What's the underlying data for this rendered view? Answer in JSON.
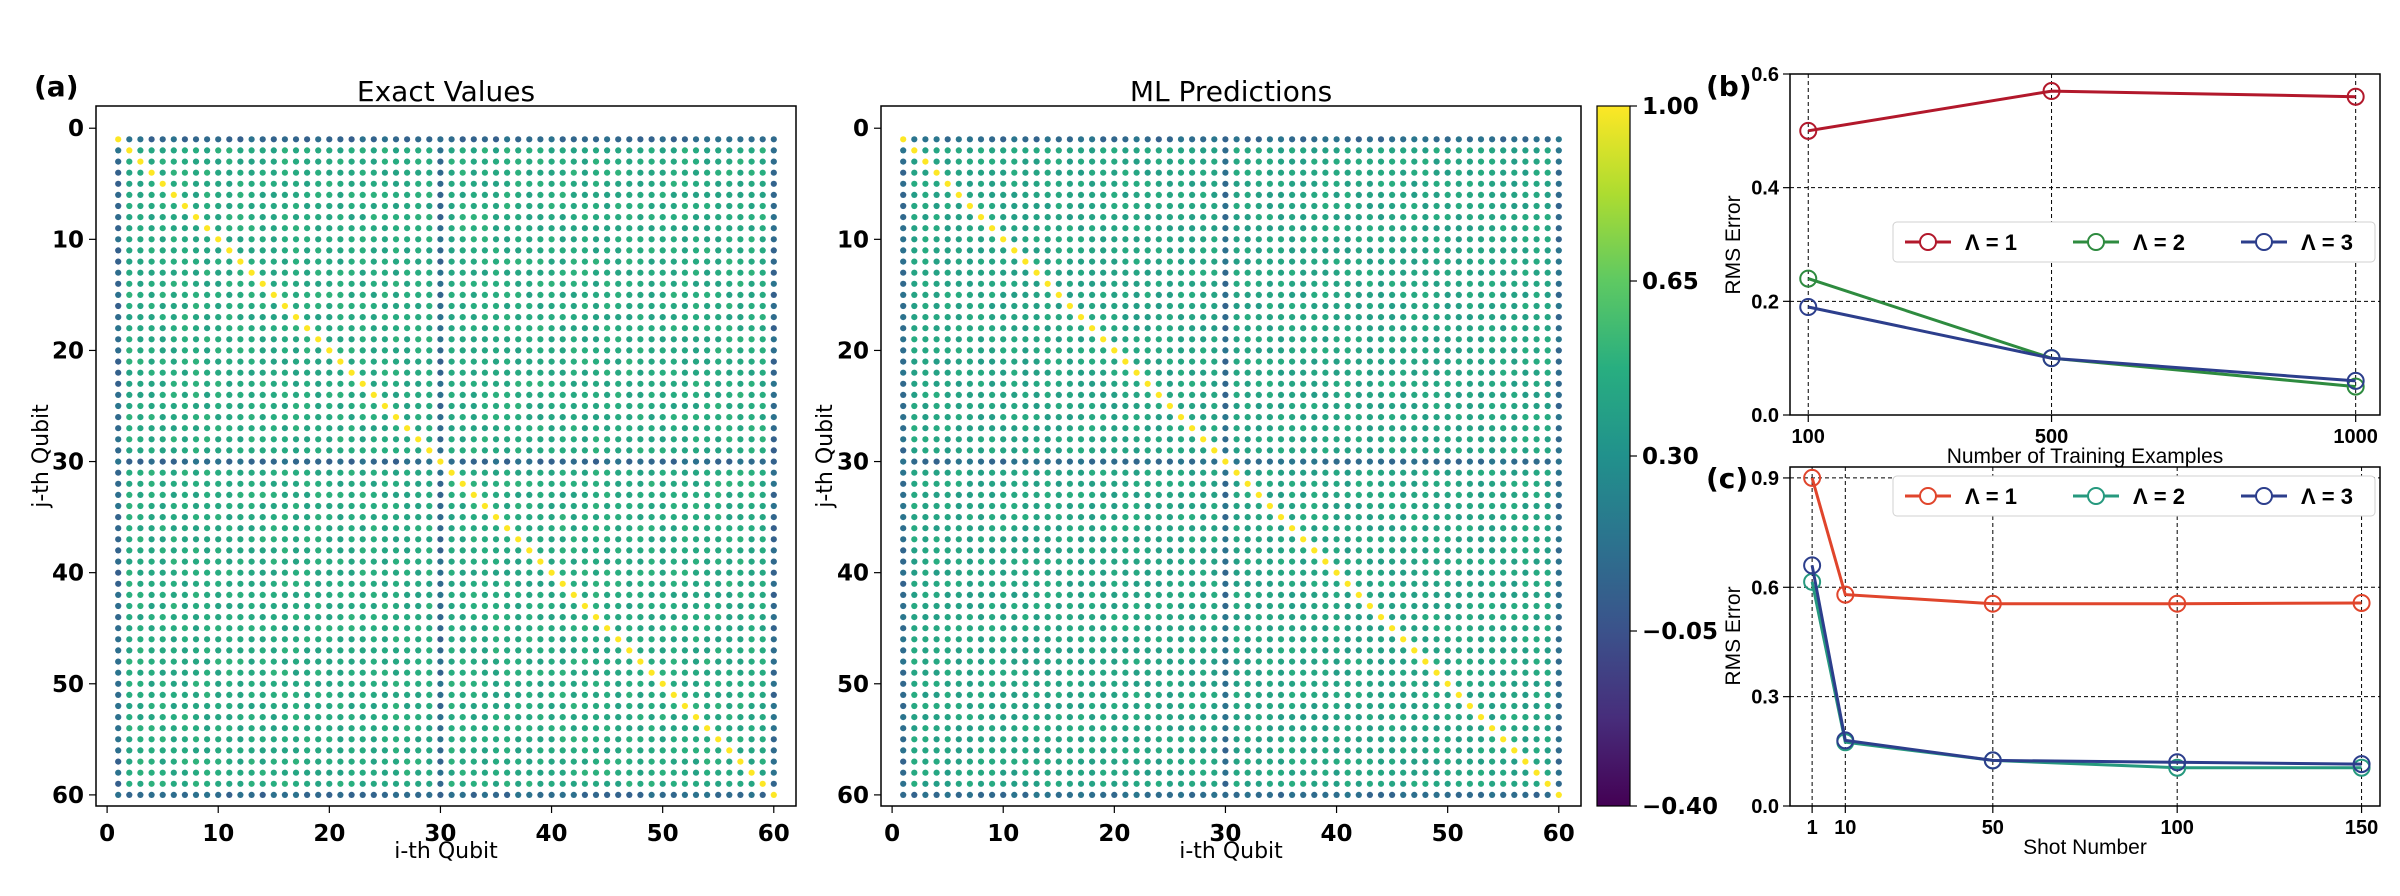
{
  "figure": {
    "panel_a_label": "(a)",
    "panel_b_label": "(b)",
    "panel_c_label": "(c)"
  },
  "chart_data": [
    {
      "type": "heatmap",
      "title": "Exact Values",
      "xlabel": "i-th Qubit",
      "ylabel": "j-th Qubit",
      "xticks": [
        0,
        10,
        20,
        30,
        40,
        50,
        60
      ],
      "yticks": [
        0,
        10,
        20,
        30,
        40,
        50,
        60
      ],
      "xlim": [
        -1,
        62
      ],
      "ylim": [
        61,
        -2
      ],
      "grid_size": 60,
      "index_range": [
        1,
        60
      ],
      "diagonal_value": 1.0,
      "off_diagonal_typical": 0.45,
      "special_row_col_typical": 0.08,
      "special_rows_cols": [
        1,
        30,
        60
      ],
      "colormap": "viridis"
    },
    {
      "type": "heatmap",
      "title": "ML Predictions",
      "xlabel": "i-th Qubit",
      "ylabel": "j-th Qubit",
      "xticks": [
        0,
        10,
        20,
        30,
        40,
        50,
        60
      ],
      "yticks": [
        0,
        10,
        20,
        30,
        40,
        50,
        60
      ],
      "xlim": [
        -1,
        62
      ],
      "ylim": [
        61,
        -2
      ],
      "grid_size": 60,
      "index_range": [
        1,
        60
      ],
      "diagonal_value": 1.0,
      "off_diagonal_typical": 0.42,
      "special_row_col_typical": 0.1,
      "special_rows_cols": [
        1,
        30,
        60
      ],
      "colormap": "viridis",
      "colorbar": {
        "min": -0.4,
        "max": 1.0,
        "ticks": [
          1.0,
          0.65,
          0.3,
          -0.05,
          -0.4
        ],
        "tick_labels": [
          "1.00",
          "0.65",
          "0.30",
          "−0.05",
          "−0.40"
        ]
      }
    },
    {
      "type": "line",
      "xlabel": "Number of Training Examples",
      "ylabel": "RMS Error",
      "x": [
        100,
        500,
        1000
      ],
      "xticks": [
        100,
        500,
        1000
      ],
      "xlim": [
        70,
        1040
      ],
      "ylim": [
        0.0,
        0.6
      ],
      "yticks": [
        0.0,
        0.2,
        0.4,
        0.6
      ],
      "ytick_labels": [
        "0.0",
        "0.2",
        "0.4",
        "0.6"
      ],
      "grid": true,
      "legend_position": "center",
      "series": [
        {
          "name": "Λ = 1",
          "color": "#b2182b",
          "values": [
            0.5,
            0.57,
            0.56
          ]
        },
        {
          "name": "Λ = 2",
          "color": "#2e8b3f",
          "values": [
            0.24,
            0.1,
            0.05
          ]
        },
        {
          "name": "Λ = 3",
          "color": "#2c3e8c",
          "values": [
            0.19,
            0.1,
            0.06
          ]
        }
      ]
    },
    {
      "type": "line",
      "xlabel": "Shot Number",
      "ylabel": "RMS Error",
      "x": [
        1,
        10,
        50,
        100,
        150
      ],
      "xticks": [
        1,
        10,
        50,
        100,
        150
      ],
      "xlim": [
        -5,
        155
      ],
      "ylim": [
        0.0,
        0.93
      ],
      "yticks": [
        0.0,
        0.3,
        0.6,
        0.9
      ],
      "ytick_labels": [
        "0.0",
        "0.3",
        "0.6",
        "0.9"
      ],
      "grid": true,
      "legend_position": "top",
      "series": [
        {
          "name": "Λ = 1",
          "color": "#e0452c",
          "values": [
            0.9,
            0.58,
            0.555,
            0.555,
            0.557
          ]
        },
        {
          "name": "Λ = 2",
          "color": "#26997e",
          "values": [
            0.615,
            0.175,
            0.125,
            0.105,
            0.105
          ]
        },
        {
          "name": "Λ = 3",
          "color": "#2c3e8c",
          "values": [
            0.66,
            0.18,
            0.125,
            0.12,
            0.115
          ]
        }
      ]
    }
  ]
}
